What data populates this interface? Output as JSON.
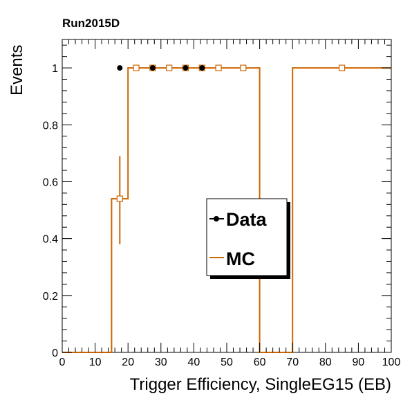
{
  "chart_data": {
    "type": "line",
    "title": "Run2015D",
    "xlabel": "Trigger Efficiency, SingleEG15  (EB)",
    "ylabel": "Events",
    "xlim": [
      0,
      100
    ],
    "ylim": [
      0,
      1.1
    ],
    "x_ticks": [
      "0",
      "10",
      "20",
      "30",
      "40",
      "50",
      "60",
      "70",
      "80",
      "90",
      "100"
    ],
    "y_ticks": [
      "0",
      "0.2",
      "0.4",
      "0.6",
      "0.8",
      "1"
    ],
    "grid": false,
    "legend_position": "center",
    "series": [
      {
        "name": "Data",
        "style": "markers",
        "color": "#000000",
        "x": [
          17.5,
          27.5,
          37.5,
          42.5
        ],
        "y": [
          1,
          1,
          1,
          1
        ]
      },
      {
        "name": "MC",
        "style": "step",
        "color": "#cc6600",
        "bin_edges": [
          0,
          15,
          20,
          25,
          30,
          35,
          40,
          45,
          50,
          60,
          70,
          100
        ],
        "values": [
          0,
          0.54,
          1,
          1,
          1,
          1,
          1,
          1,
          1,
          0,
          1
        ],
        "marker_x": [
          17.5,
          22.5,
          27.5,
          32.5,
          37.5,
          42.5,
          47.5,
          55,
          85
        ],
        "marker_y": [
          0.54,
          1,
          1,
          1,
          1,
          1,
          1,
          1,
          1
        ],
        "error_bar": {
          "x": 17.5,
          "low": 0.38,
          "high": 0.69
        }
      }
    ]
  }
}
